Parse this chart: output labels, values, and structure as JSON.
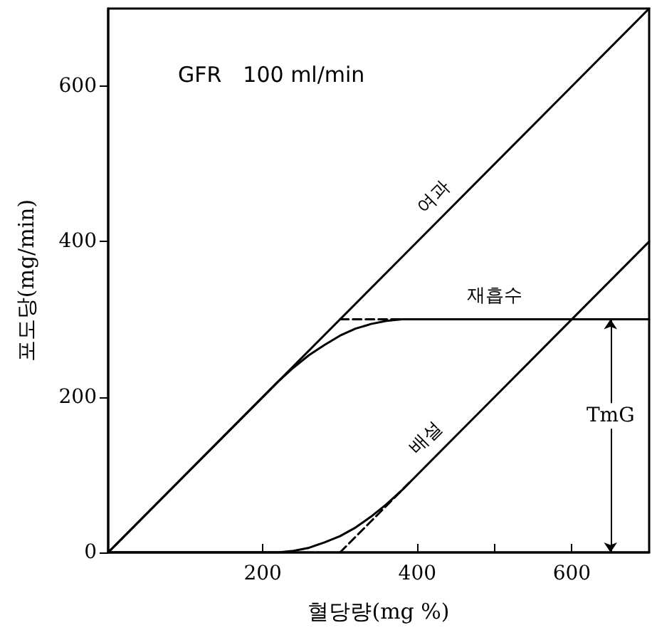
{
  "chart_data": {
    "type": "line",
    "xlabel": "혈당량(mg %)",
    "ylabel": "포도당(mg/min)",
    "xlim": [
      0,
      700
    ],
    "xticks": [
      200,
      400,
      {
        "value": 500,
        "label": null
      },
      600
    ],
    "ylim": [
      0,
      700
    ],
    "yticks": [
      0,
      200,
      400,
      600
    ],
    "grid": false,
    "legend": false,
    "marker": "none",
    "annotations": [
      "GFR　100 ml/min",
      "TmG"
    ],
    "series": [
      {
        "name": "여과",
        "color": "#000000",
        "x": [
          0,
          430,
          700
        ],
        "values": [
          0,
          430,
          700
        ]
      },
      {
        "name": "재흡수",
        "color": "#000000",
        "x": [
          0,
          220,
          240,
          260,
          280,
          300,
          320,
          340,
          360,
          380,
          500,
          700
        ],
        "values": [
          0,
          220,
          238,
          254,
          267,
          279,
          288,
          294,
          298,
          300,
          300,
          300
        ]
      },
      {
        "name": "배설",
        "color": "#000000",
        "x": [
          0,
          220,
          240,
          260,
          280,
          300,
          320,
          340,
          360,
          380,
          420,
          700
        ],
        "values": [
          0,
          0,
          2,
          6,
          13,
          21,
          32,
          46,
          62,
          80,
          120,
          400
        ]
      },
      {
        "color": "#000000",
        "line_style": "dashed",
        "x": [
          300,
          380
        ],
        "values": [
          300,
          300
        ]
      },
      {
        "color": "#000000",
        "line_style": "dashed",
        "x": [
          300,
          390
        ],
        "values": [
          0,
          90
        ]
      }
    ]
  }
}
